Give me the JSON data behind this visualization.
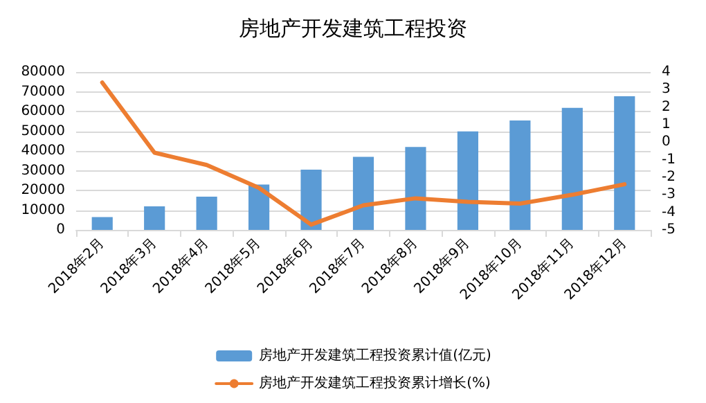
{
  "chart_data": {
    "type": "bar",
    "title": "房地产开发建筑工程投资",
    "categories": [
      "2018年2月",
      "2018年3月",
      "2018年4月",
      "2018年5月",
      "2018年6月",
      "2018年7月",
      "2018年8月",
      "2018年9月",
      "2018年10月",
      "2018年11月",
      "2018年12月"
    ],
    "series": [
      {
        "name": "房地产开发建筑工程投资累计值(亿元)",
        "color": "#5b9bd5",
        "values": [
          6500,
          11900,
          16800,
          23000,
          30500,
          37000,
          42000,
          49900,
          55400,
          61800,
          67700
        ]
      },
      {
        "name": "房地产开发建筑工程投资累计增长(%)",
        "type": "line",
        "axis": "y2",
        "color": "#ed7d31",
        "values": [
          3.4,
          -0.6,
          -1.3,
          -2.6,
          -4.7,
          -3.6,
          -3.2,
          -3.4,
          -3.5,
          -3.0,
          -2.4
        ]
      }
    ],
    "ylim": [
      0,
      80000
    ],
    "yticks": [
      0,
      10000,
      20000,
      30000,
      40000,
      50000,
      60000,
      70000,
      80000
    ],
    "y2lim": [
      -5,
      4
    ],
    "y2ticks": [
      -5,
      -4,
      -3,
      -2,
      -1,
      0,
      1,
      2,
      3,
      4
    ],
    "grid": "y",
    "legend": "bottom",
    "marker": "none"
  }
}
